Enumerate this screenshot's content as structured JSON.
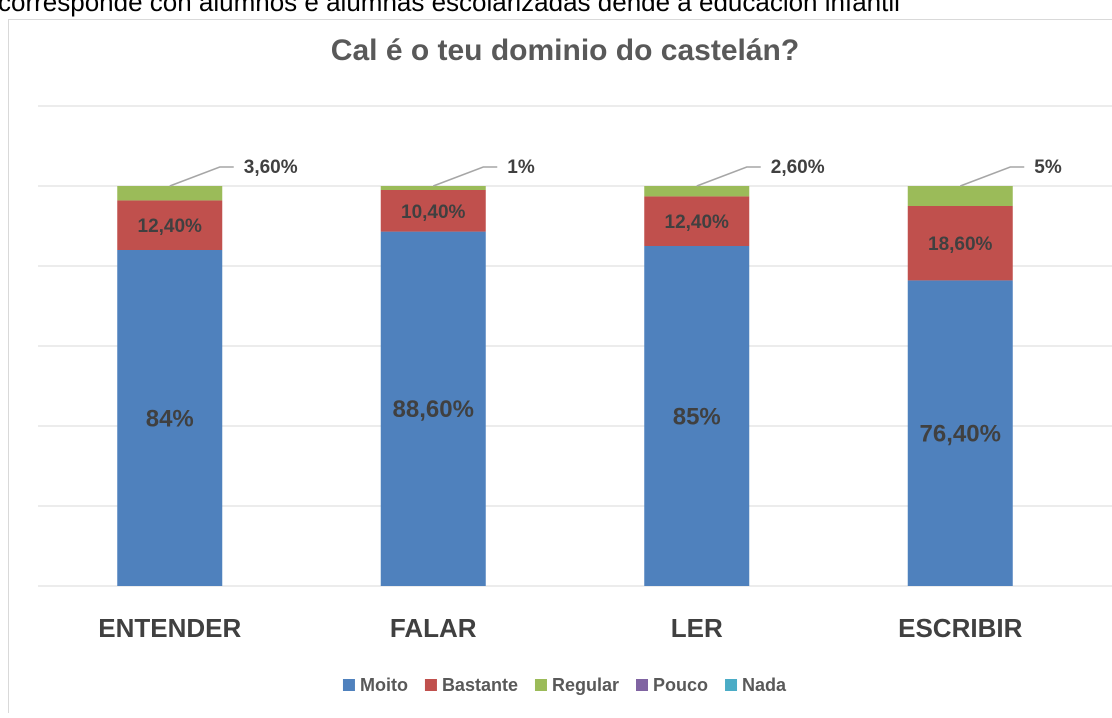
{
  "header_text": "corresponde con alumnos e alumnas escolarizadas dende a educación infantil",
  "chart_data": {
    "type": "stacked_bar",
    "title": "Cal é o teu dominio do castelán?",
    "categories": [
      "ENTENDER",
      "FALAR",
      "LER",
      "ESCRIBIR"
    ],
    "series": [
      {
        "name": "Moito",
        "color": "#4f81bd",
        "values": [
          84,
          88.6,
          85,
          76.4
        ],
        "value_labels": [
          "84%",
          "88,60%",
          "85%",
          "76,40%"
        ]
      },
      {
        "name": "Bastante",
        "color": "#c0504d",
        "values": [
          12.4,
          10.4,
          12.4,
          18.6
        ],
        "value_labels": [
          "12,40%",
          "10,40%",
          "12,40%",
          "18,60%"
        ]
      },
      {
        "name": "Regular",
        "color": "#9bbb59",
        "values": [
          3.6,
          1,
          2.6,
          5
        ],
        "value_labels": [
          "3,60%",
          "1%",
          "2,60%",
          "5%"
        ]
      },
      {
        "name": "Pouco",
        "color": "#8064a2",
        "values": [
          0,
          0,
          0,
          0
        ]
      },
      {
        "name": "Nada",
        "color": "#4bacc6",
        "values": [
          0,
          0,
          0,
          0
        ]
      }
    ],
    "ylim": [
      0,
      120
    ],
    "yticks": [
      0,
      20,
      40,
      60,
      80,
      100,
      120
    ],
    "grid": true,
    "legend": "bottom"
  }
}
